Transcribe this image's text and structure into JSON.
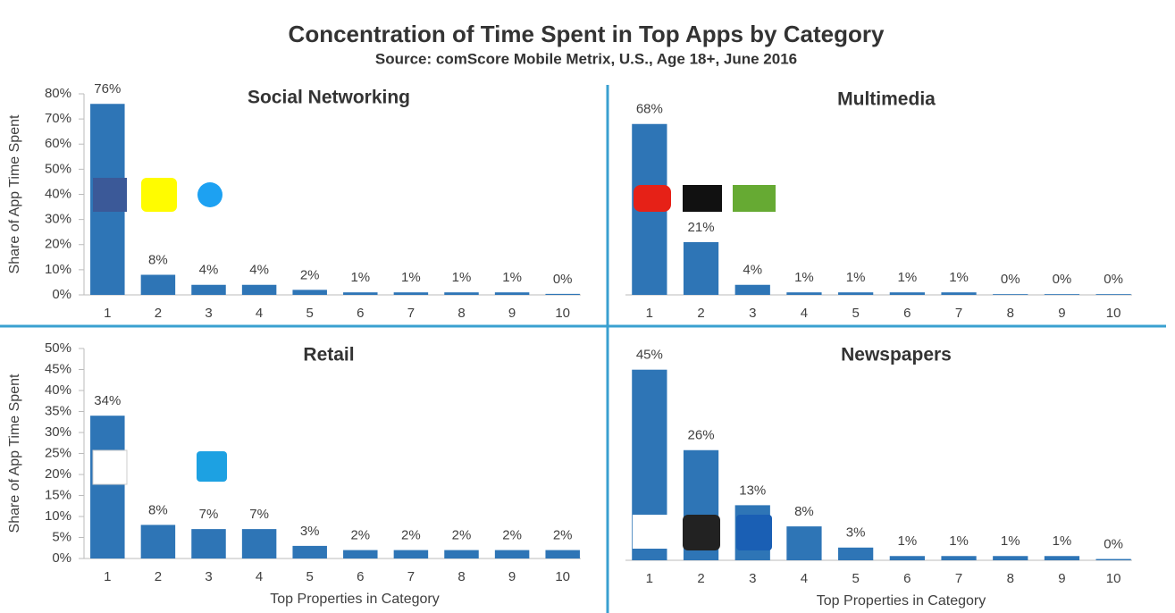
{
  "title": "Concentration of Time Spent in Top Apps by Category",
  "subtitle": "Source: comScore Mobile Metrix, U.S., Age 18+, June 2016",
  "chart_data": [
    {
      "type": "bar",
      "title": "Social Networking",
      "y_label": "Share of App Time Spent",
      "categories": [
        "1",
        "2",
        "3",
        "4",
        "5",
        "6",
        "7",
        "8",
        "9",
        "10"
      ],
      "values": [
        76,
        8,
        4,
        4,
        2,
        1,
        1,
        1,
        1,
        0.4
      ],
      "value_labels": [
        "76%",
        "8%",
        "4%",
        "4%",
        "2%",
        "1%",
        "1%",
        "1%",
        "1%",
        "0%"
      ],
      "color": "#2e75b6",
      "ylim": [
        0,
        80
      ],
      "yticks": [
        {
          "value": 0,
          "label": "0%"
        },
        {
          "value": 10,
          "label": "10%"
        },
        {
          "value": 20,
          "label": "20%"
        },
        {
          "value": 30,
          "label": "30%"
        },
        {
          "value": 40,
          "label": "40%"
        },
        {
          "value": 50,
          "label": "50%"
        },
        {
          "value": 60,
          "label": "60%"
        },
        {
          "value": 70,
          "label": "70%"
        },
        {
          "value": 80,
          "label": "80%"
        }
      ]
    },
    {
      "type": "bar",
      "title": "Multimedia",
      "categories": [
        "1",
        "2",
        "3",
        "4",
        "5",
        "6",
        "7",
        "8",
        "9",
        "10"
      ],
      "values": [
        68,
        21,
        4,
        1,
        1,
        1,
        1,
        0.3,
        0.3,
        0.3
      ],
      "value_labels": [
        "68%",
        "21%",
        "4%",
        "1%",
        "1%",
        "1%",
        "1%",
        "0%",
        "0%",
        "0%"
      ],
      "color": "#2e75b6",
      "ylim": [
        0,
        80
      ]
    },
    {
      "type": "bar",
      "title": "Retail",
      "y_label": "Share of App Time Spent",
      "x_label": "Top Properties in Category",
      "categories": [
        "1",
        "2",
        "3",
        "4",
        "5",
        "6",
        "7",
        "8",
        "9",
        "10"
      ],
      "values": [
        34,
        8,
        7,
        7,
        3,
        2,
        2,
        2,
        2,
        2
      ],
      "value_labels": [
        "34%",
        "8%",
        "7%",
        "7%",
        "3%",
        "2%",
        "2%",
        "2%",
        "2%",
        "2%"
      ],
      "color": "#2e75b6",
      "ylim": [
        0,
        50
      ],
      "yticks": [
        {
          "value": 0,
          "label": "0%"
        },
        {
          "value": 5,
          "label": "5%"
        },
        {
          "value": 10,
          "label": "10%"
        },
        {
          "value": 15,
          "label": "15%"
        },
        {
          "value": 20,
          "label": "20%"
        },
        {
          "value": 25,
          "label": "25%"
        },
        {
          "value": 30,
          "label": "30%"
        },
        {
          "value": 35,
          "label": "35%"
        },
        {
          "value": 40,
          "label": "40%"
        },
        {
          "value": 45,
          "label": "45%"
        },
        {
          "value": 50,
          "label": "50%"
        }
      ]
    },
    {
      "type": "bar",
      "title": "Newspapers",
      "x_label": "Top Properties in Category",
      "categories": [
        "1",
        "2",
        "3",
        "4",
        "5",
        "6",
        "7",
        "8",
        "9",
        "10"
      ],
      "values": [
        45,
        26,
        13,
        8,
        3,
        1,
        1,
        1,
        1,
        0.3
      ],
      "value_labels": [
        "45%",
        "26%",
        "13%",
        "8%",
        "3%",
        "1%",
        "1%",
        "1%",
        "1%",
        "0%"
      ],
      "color": "#2e75b6",
      "ylim": [
        0,
        50
      ]
    }
  ]
}
